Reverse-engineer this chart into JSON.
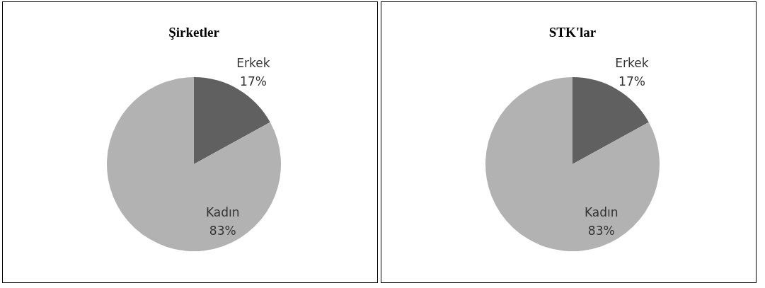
{
  "chart_data": [
    {
      "type": "pie",
      "title": "Şirketler",
      "categories": [
        "Erkek",
        "Kadın"
      ],
      "values": [
        17,
        83
      ],
      "value_labels": [
        "17%",
        "83%"
      ],
      "colors": [
        "#606060",
        "#b2b2b2"
      ]
    },
    {
      "type": "pie",
      "title": "STK'lar",
      "categories": [
        "Erkek",
        "Kadın"
      ],
      "values": [
        17,
        83
      ],
      "value_labels": [
        "17%",
        "83%"
      ],
      "colors": [
        "#606060",
        "#b2b2b2"
      ]
    }
  ]
}
